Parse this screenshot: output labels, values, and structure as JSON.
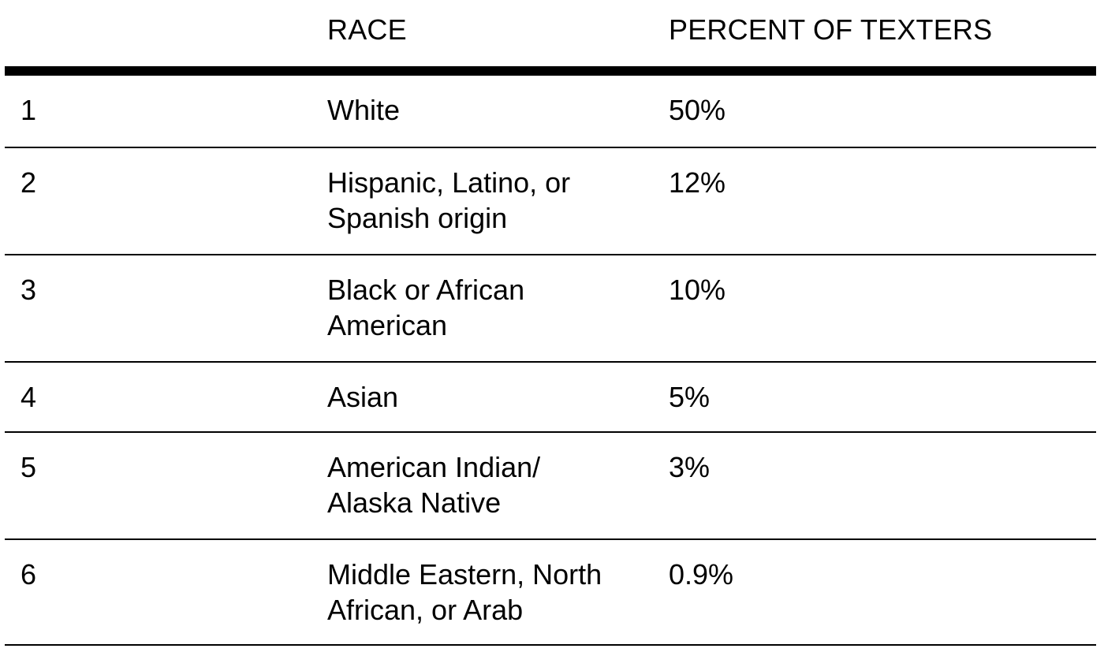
{
  "table": {
    "headers": {
      "number": "",
      "race": "RACE",
      "percent": "PERCENT OF TEXTERS"
    },
    "rows": [
      {
        "number": "1",
        "race": "White",
        "percent": "50%"
      },
      {
        "number": "2",
        "race": "Hispanic, Latino, or\nSpanish origin",
        "percent": "12%"
      },
      {
        "number": "3",
        "race": "Black or African\nAmerican",
        "percent": "10%"
      },
      {
        "number": "4",
        "race": "Asian",
        "percent": "5%"
      },
      {
        "number": "5",
        "race": "American Indian/\nAlaska Native",
        "percent": "3%"
      },
      {
        "number": "6",
        "race": "Middle Eastern, North\nAfrican, or Arab",
        "percent": "0.9%"
      }
    ]
  }
}
